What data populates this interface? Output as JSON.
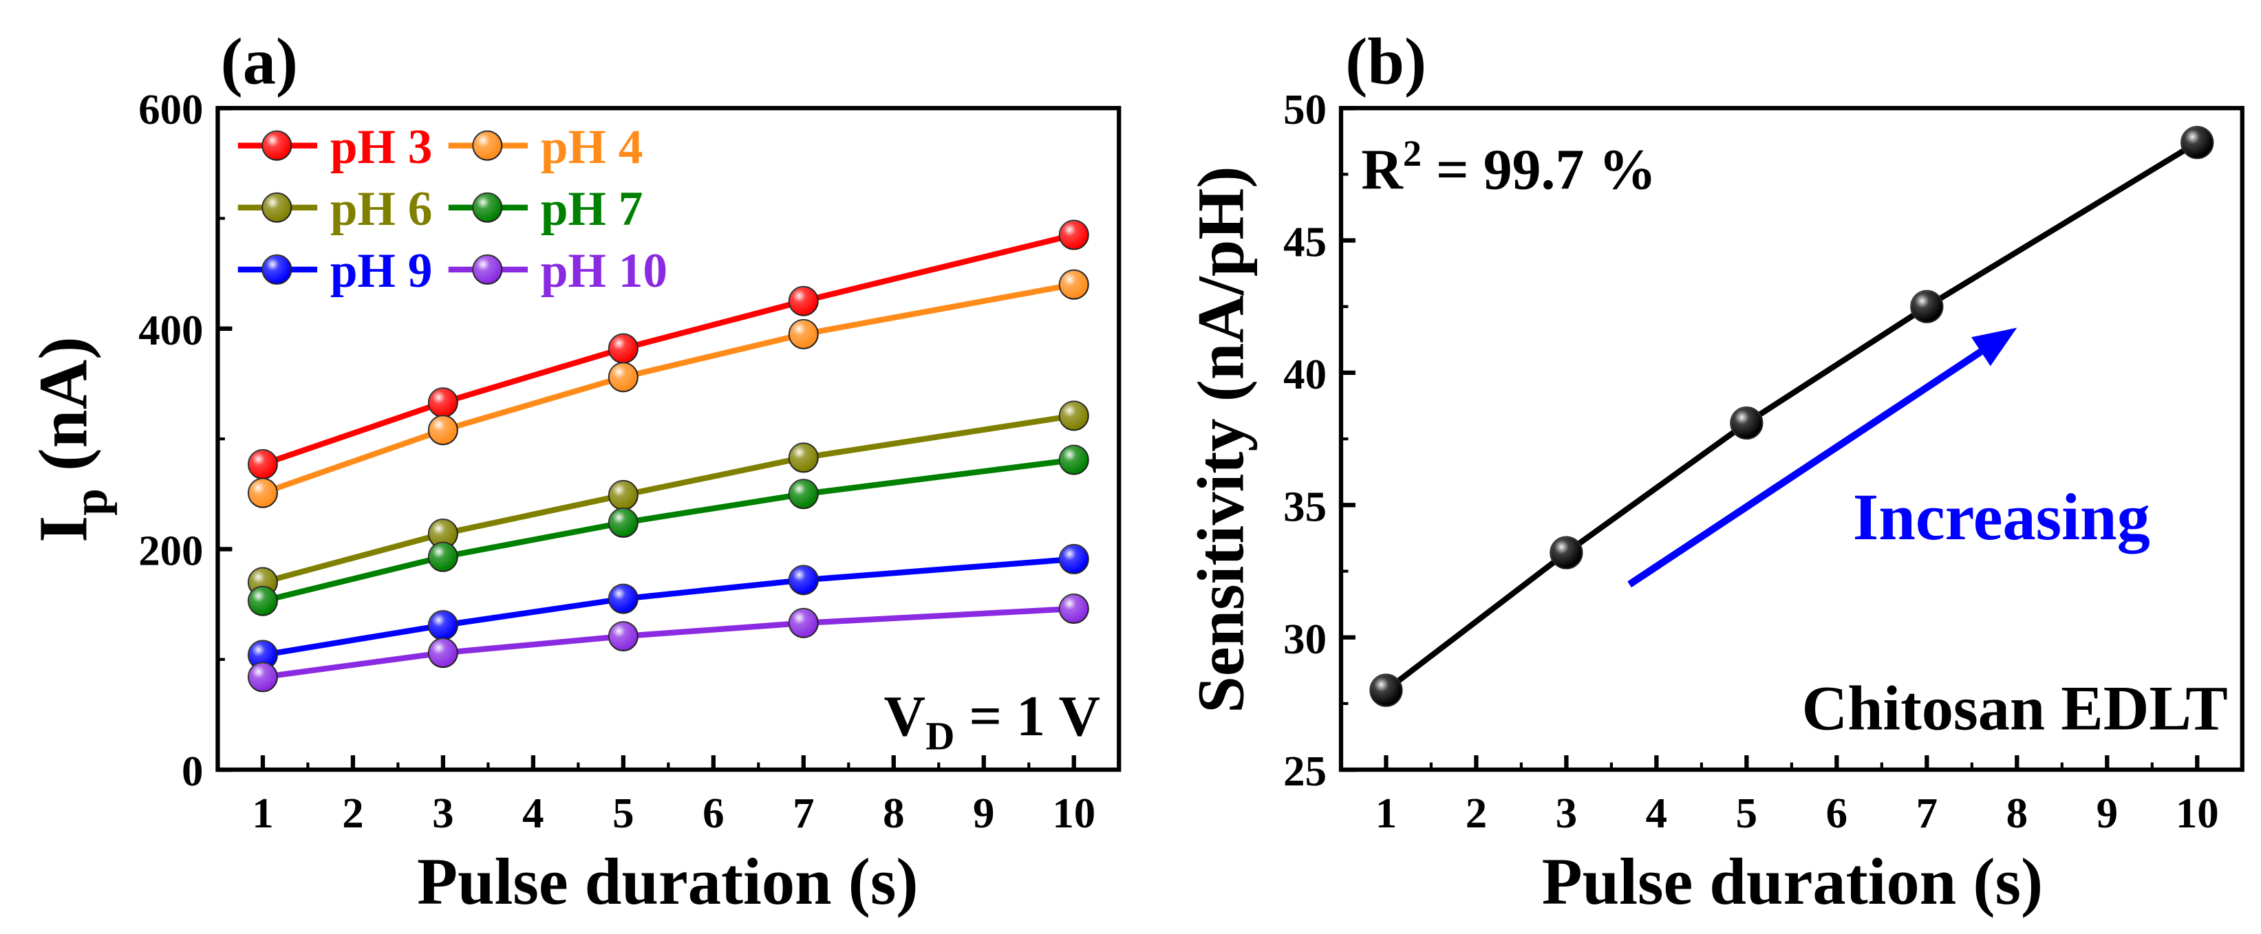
{
  "colors": {
    "axis": "#000000",
    "pH 3": "#ff0000",
    "pH 4": "#ff8c1a",
    "pH 6": "#808000",
    "pH 7": "#008000",
    "pH 9": "#0000ff",
    "pH 10": "#8a2be2",
    "sensitivity": "#000000",
    "arrow": "#0000ff",
    "increasing_text": "#0000ff"
  },
  "chart_data": [
    {
      "type": "line",
      "panel_label": "(a)",
      "title": "",
      "xlabel": "Pulse duration (s)",
      "ylabel": {
        "main": "I",
        "sub": "p",
        "unit": " (nA)"
      },
      "x": [
        1,
        3,
        5,
        7,
        10
      ],
      "xlim": [
        0.5,
        10.5
      ],
      "ylim": [
        0,
        600
      ],
      "xticks": [
        1,
        2,
        3,
        4,
        5,
        6,
        7,
        8,
        9,
        10
      ],
      "yticks": [
        0,
        200,
        400,
        600
      ],
      "grid": false,
      "legend_placement": "top-left",
      "series": [
        {
          "name": "pH 3",
          "values": [
            277,
            333,
            382,
            425,
            485
          ]
        },
        {
          "name": "pH 4",
          "values": [
            251,
            308,
            356,
            395,
            440
          ]
        },
        {
          "name": "pH 6",
          "values": [
            170,
            214,
            249,
            283,
            321
          ]
        },
        {
          "name": "pH 7",
          "values": [
            153,
            193,
            224,
            250,
            281
          ]
        },
        {
          "name": "pH 9",
          "values": [
            104,
            131,
            155,
            172,
            191
          ]
        },
        {
          "name": "pH 10",
          "values": [
            84,
            106,
            121,
            133,
            146
          ]
        }
      ],
      "annotations": [
        {
          "text": "V",
          "sub": "D",
          "rest": " = 1 V",
          "placement": "bottom-right"
        }
      ]
    },
    {
      "type": "line",
      "panel_label": "(b)",
      "title": "",
      "xlabel": "Pulse duration (s)",
      "ylabel": "Sensitivity (nA/pH)",
      "x": [
        1,
        3,
        5,
        7,
        10
      ],
      "xlim": [
        0.5,
        10.5
      ],
      "ylim": [
        25,
        50
      ],
      "xticks": [
        1,
        2,
        3,
        4,
        5,
        6,
        7,
        8,
        9,
        10
      ],
      "yticks": [
        25,
        30,
        35,
        40,
        45,
        50
      ],
      "grid": false,
      "series": [
        {
          "name": "Sensitivity",
          "values": [
            28.0,
            33.2,
            38.1,
            42.5,
            48.7
          ]
        }
      ],
      "annotations": [
        {
          "text": "R",
          "sup": "2",
          "rest": " = 99.7 %",
          "placement": "top-left"
        },
        {
          "text": "Increasing",
          "placement": "center-right",
          "arrow": {
            "from": [
              3.7,
              32.0
            ],
            "to": [
              8.0,
              41.7
            ]
          }
        },
        {
          "text": "Chitosan EDLT",
          "placement": "bottom-right"
        }
      ]
    }
  ]
}
